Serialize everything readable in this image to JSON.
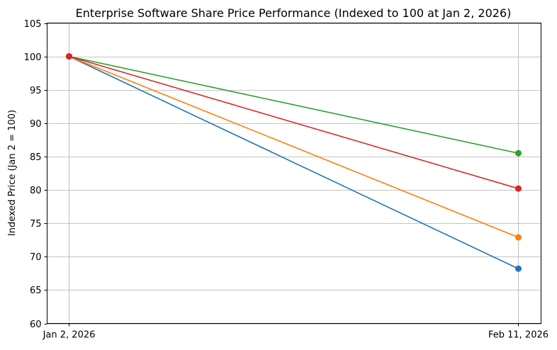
{
  "chart_data": {
    "type": "line",
    "title": "Enterprise Software Share Price Performance (Indexed to 100 at Jan 2, 2026)",
    "xlabel": "",
    "ylabel": "Indexed Price (Jan 2 = 100)",
    "categories": [
      "Jan 2, 2026",
      "Feb 11, 2026"
    ],
    "ylim": [
      60,
      105
    ],
    "yticks": [
      60,
      65,
      70,
      75,
      80,
      85,
      90,
      95,
      100,
      105
    ],
    "grid": true,
    "legend": "none",
    "series": [
      {
        "color": "#1f77b4",
        "values": [
          100,
          68.2
        ]
      },
      {
        "color": "#ff7f0e",
        "values": [
          100,
          72.9
        ]
      },
      {
        "color": "#2ca02c",
        "values": [
          100,
          85.5
        ]
      },
      {
        "color": "#d62728",
        "values": [
          100,
          80.2
        ]
      }
    ]
  }
}
